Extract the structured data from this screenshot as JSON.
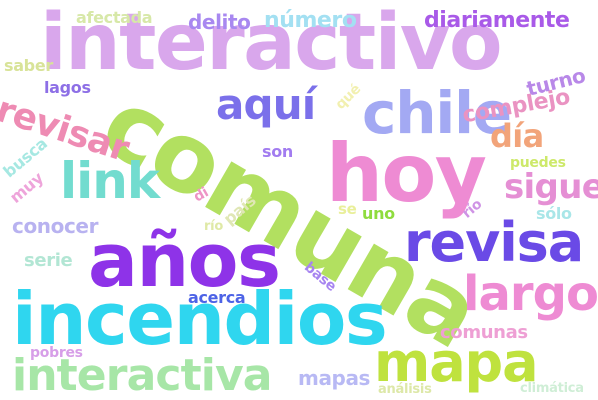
{
  "words": [
    {
      "text": "interactivo",
      "color": "#d9a7ec"
    },
    {
      "text": "comuna",
      "color": "#b2e060"
    },
    {
      "text": "hoy",
      "color": "#ee8bd3"
    },
    {
      "text": "años",
      "color": "#8e33e8"
    },
    {
      "text": "incendios",
      "color": "#2fd6ef"
    },
    {
      "text": "chile",
      "color": "#a3a9f3"
    },
    {
      "text": "link",
      "color": "#72dccf"
    },
    {
      "text": "revisa",
      "color": "#6a4ae6"
    },
    {
      "text": "mapa",
      "color": "#bfe23e"
    },
    {
      "text": "largo",
      "color": "#ee8bd3"
    },
    {
      "text": "interactiva",
      "color": "#a7e6a7"
    },
    {
      "text": "revisar",
      "color": "#ee8bb3"
    },
    {
      "text": "aquí",
      "color": "#7b70ea"
    },
    {
      "text": "sigue",
      "color": "#e58fd4"
    },
    {
      "text": "día",
      "color": "#f2a47a"
    },
    {
      "text": "complejo",
      "color": "#ea93c2"
    },
    {
      "text": "diariamente",
      "color": "#a95ae8"
    },
    {
      "text": "número",
      "color": "#a3e0f2"
    },
    {
      "text": "delito",
      "color": "#a888f0"
    },
    {
      "text": "afectada",
      "color": "#d7e8a8"
    },
    {
      "text": "turno",
      "color": "#b888e8"
    },
    {
      "text": "lagos",
      "color": "#8d6fe6"
    },
    {
      "text": "saber",
      "color": "#d8e398"
    },
    {
      "text": "qué",
      "color": "#f2f0b0"
    },
    {
      "text": "busca",
      "color": "#a6e8e2"
    },
    {
      "text": "son",
      "color": "#a27cf0"
    },
    {
      "text": "puedes",
      "color": "#cde96a"
    },
    {
      "text": "muy",
      "color": "#eea4da"
    },
    {
      "text": "di",
      "color": "#ee94c6"
    },
    {
      "text": "país",
      "color": "#e0e7b5"
    },
    {
      "text": "se",
      "color": "#e9ef9a"
    },
    {
      "text": "uno",
      "color": "#8fdc3e"
    },
    {
      "text": "río",
      "color": "#cf93e5"
    },
    {
      "text": "sólo",
      "color": "#a9e6e8"
    },
    {
      "text": "conocer",
      "color": "#b8b2f0"
    },
    {
      "text": "río",
      "color": "#dfe9a6"
    },
    {
      "text": "serie",
      "color": "#b2e6d4"
    },
    {
      "text": "base",
      "color": "#a784f0"
    },
    {
      "text": "acerca",
      "color": "#4d63e6"
    },
    {
      "text": "comunas",
      "color": "#ee9fd4"
    },
    {
      "text": "pobres",
      "color": "#d79ee8"
    },
    {
      "text": "mapas",
      "color": "#b8b9f4"
    },
    {
      "text": "análisis",
      "color": "#dde8a8"
    },
    {
      "text": "climática",
      "color": "#cfeed6"
    }
  ]
}
